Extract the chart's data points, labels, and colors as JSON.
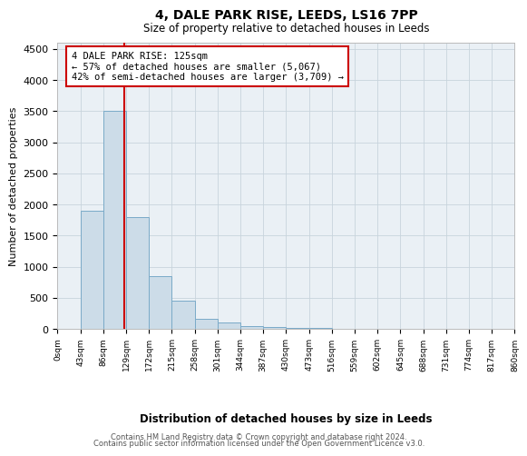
{
  "title1": "4, DALE PARK RISE, LEEDS, LS16 7PP",
  "title2": "Size of property relative to detached houses in Leeds",
  "xlabel": "Distribution of detached houses by size in Leeds",
  "ylabel": "Number of detached properties",
  "footer1": "Contains HM Land Registry data © Crown copyright and database right 2024.",
  "footer2": "Contains public sector information licensed under the Open Government Licence v3.0.",
  "annotation_title": "4 DALE PARK RISE: 125sqm",
  "annotation_line1": "← 57% of detached houses are smaller (5,067)",
  "annotation_line2": "42% of semi-detached houses are larger (3,709) →",
  "property_size": 125,
  "bin_edges": [
    0,
    43,
    86,
    129,
    172,
    215,
    258,
    301,
    344,
    387,
    430,
    473,
    516,
    559,
    602,
    645,
    688,
    731,
    774,
    817,
    860
  ],
  "bar_heights": [
    0,
    1900,
    3500,
    1800,
    850,
    450,
    160,
    100,
    50,
    30,
    15,
    10,
    5,
    3,
    2,
    1,
    1,
    0,
    0,
    0
  ],
  "bar_color": "#ccdce8",
  "bar_edge_color": "#7aaac8",
  "marker_color": "#cc0000",
  "ylim": [
    0,
    4600
  ],
  "yticks": [
    0,
    500,
    1000,
    1500,
    2000,
    2500,
    3000,
    3500,
    4000,
    4500
  ],
  "annotation_box_color": "#cc0000",
  "grid_color": "#c8d4dc",
  "background_color": "#eaf0f5"
}
